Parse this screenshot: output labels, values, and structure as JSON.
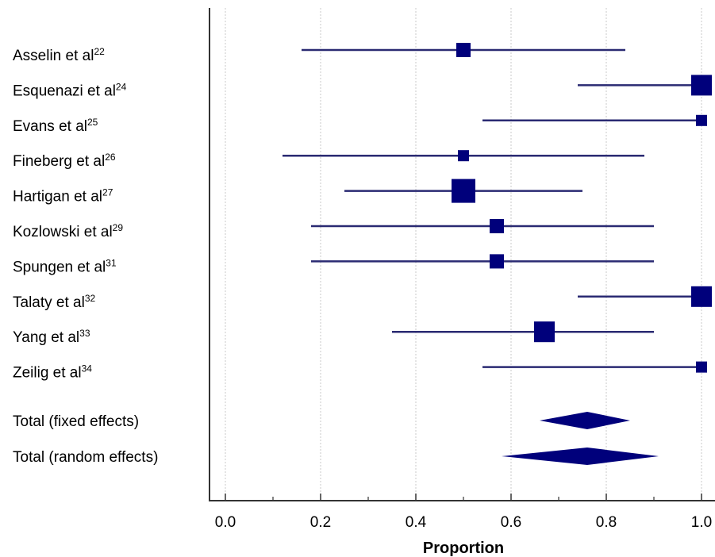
{
  "chart_data": {
    "type": "forest",
    "xlabel": "Proportion",
    "xlim": [
      0.0,
      1.0
    ],
    "x_ticks": [
      "0.0",
      "0.2",
      "0.4",
      "0.6",
      "0.8",
      "1.0"
    ],
    "x_tick_values": [
      0.0,
      0.2,
      0.4,
      0.6,
      0.8,
      1.0
    ],
    "grid": true,
    "colors": {
      "marker": "#00007b",
      "ci_line": "#2a2a72",
      "grid": "#c8c8c8",
      "axis": "#333333"
    },
    "studies": [
      {
        "label": "Asselin et al",
        "ref": "22",
        "estimate": 0.5,
        "ci_lower": 0.16,
        "ci_upper": 0.84,
        "weight": 3
      },
      {
        "label": "Esquenazi  et al",
        "ref": "24",
        "estimate": 1.0,
        "ci_lower": 0.74,
        "ci_upper": 1.0,
        "weight": 5
      },
      {
        "label": "Evans et al",
        "ref": "25",
        "estimate": 1.0,
        "ci_lower": 0.54,
        "ci_upper": 1.0,
        "weight": 2
      },
      {
        "label": "Fineberg et al",
        "ref": "26",
        "estimate": 0.5,
        "ci_lower": 0.12,
        "ci_upper": 0.88,
        "weight": 2
      },
      {
        "label": "Hartigan et al",
        "ref": "27",
        "estimate": 0.5,
        "ci_lower": 0.25,
        "ci_upper": 0.75,
        "weight": 6
      },
      {
        "label": "Kozlowski et al",
        "ref": "29",
        "estimate": 0.57,
        "ci_lower": 0.18,
        "ci_upper": 0.9,
        "weight": 3
      },
      {
        "label": "Spungen et al",
        "ref": "31",
        "estimate": 0.57,
        "ci_lower": 0.18,
        "ci_upper": 0.9,
        "weight": 3
      },
      {
        "label": "Talaty et al",
        "ref": "32",
        "estimate": 1.0,
        "ci_lower": 0.74,
        "ci_upper": 1.0,
        "weight": 5
      },
      {
        "label": "Yang et al",
        "ref": "33",
        "estimate": 0.67,
        "ci_lower": 0.35,
        "ci_upper": 0.9,
        "weight": 5
      },
      {
        "label": "Zeilig et al",
        "ref": "34",
        "estimate": 1.0,
        "ci_lower": 0.54,
        "ci_upper": 1.0,
        "weight": 2
      }
    ],
    "summaries": [
      {
        "label": "Total (fixed effects)",
        "estimate": 0.76,
        "ci_lower": 0.66,
        "ci_upper": 0.85
      },
      {
        "label": "Total (random effects)",
        "estimate": 0.76,
        "ci_lower": 0.58,
        "ci_upper": 0.91
      }
    ]
  }
}
